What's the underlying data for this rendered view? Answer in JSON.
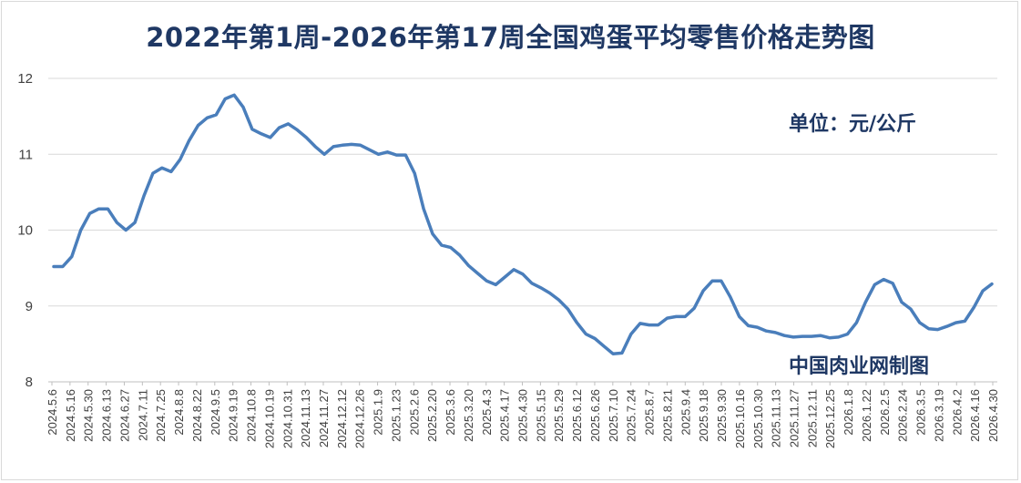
{
  "chart_data": {
    "type": "line",
    "title": "2022年第1周-2026年第17周全国鸡蛋平均零售价格走势图",
    "unit": "单位：元/公斤",
    "source": "中国肉业网制图",
    "ylim": [
      8,
      12
    ],
    "yticks": [
      8,
      9,
      10,
      11,
      12
    ],
    "grid": true,
    "line_color": "#4a7ebb",
    "x_labels": [
      "2024.5.6",
      "2024.5.16",
      "2024.5.30",
      "2024.6.13",
      "2024.6.27",
      "2024.7.11",
      "2024.7.25",
      "2024.8.8",
      "2024.8.22",
      "2024.9.5",
      "2024.9.19",
      "2024.10.8",
      "2024.10.19",
      "2024.10.31",
      "2024.11.13",
      "2024.11.27",
      "2024.12.12",
      "2024.12.26",
      "2025.1.9",
      "2025.1.23",
      "2025.2.6",
      "2025.2.20",
      "2025.3.6",
      "2025.3.20",
      "2025.4.3",
      "2025.4.17",
      "2025.4.30",
      "2025.5.15",
      "2025.5.29",
      "2025.6.12",
      "2025.6.26",
      "2025.7.10",
      "2025.7.24",
      "2025.8.7",
      "2025.8.21",
      "2025.9.4",
      "2025.9.18",
      "2025.9.30",
      "2025.10.16",
      "2025.10.30",
      "2025.11.13",
      "2025.11.27",
      "2025.12.11",
      "2025.12.25",
      "2026.1.8",
      "2026.1.22",
      "2026.2.5",
      "2026.2.24",
      "2026.3.5",
      "2026.3.19",
      "2026.4.2",
      "2026.4.16",
      "2026.4.30"
    ],
    "values": [
      9.52,
      9.52,
      9.65,
      10.0,
      10.22,
      10.28,
      10.28,
      10.1,
      10.0,
      10.1,
      10.45,
      10.75,
      10.82,
      10.77,
      10.93,
      11.18,
      11.38,
      11.48,
      11.52,
      11.73,
      11.78,
      11.62,
      11.33,
      11.27,
      11.22,
      11.35,
      11.4,
      11.32,
      11.22,
      11.1,
      11.0,
      11.1,
      11.12,
      11.13,
      11.12,
      11.06,
      11.0,
      11.03,
      10.99,
      10.99,
      10.75,
      10.28,
      9.95,
      9.8,
      9.77,
      9.67,
      9.53,
      9.43,
      9.33,
      9.28,
      9.38,
      9.48,
      9.42,
      9.3,
      9.24,
      9.17,
      9.08,
      8.96,
      8.78,
      8.63,
      8.57,
      8.47,
      8.37,
      8.38,
      8.63,
      8.77,
      8.75,
      8.75,
      8.84,
      8.86,
      8.86,
      8.97,
      9.2,
      9.33,
      9.33,
      9.12,
      8.86,
      8.74,
      8.72,
      8.67,
      8.65,
      8.61,
      8.59,
      8.6,
      8.6,
      8.61,
      8.58,
      8.59,
      8.63,
      8.78,
      9.05,
      9.28,
      9.35,
      9.3,
      9.05,
      8.96,
      8.78,
      8.7,
      8.69,
      8.73,
      8.78,
      8.8,
      8.98,
      9.2,
      9.29
    ]
  }
}
